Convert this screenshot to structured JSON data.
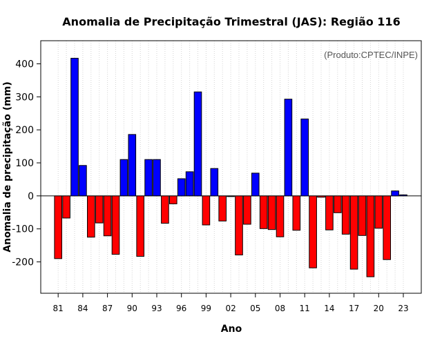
{
  "chart_data": {
    "type": "bar",
    "title": "Anomalia de Precipitação Trimestral (JAS): Região 116",
    "xlabel": "Ano",
    "ylabel": "Anomalia de precipitação (mm)",
    "credit": "(Produto:CPTEC/INPE)",
    "ylim": [
      -295,
      470
    ],
    "yticks": [
      -200,
      -100,
      0,
      100,
      200,
      300,
      400
    ],
    "xtick_labels": [
      "81",
      "84",
      "87",
      "90",
      "93",
      "96",
      "99",
      "02",
      "05",
      "08",
      "11",
      "14",
      "17",
      "20",
      "23"
    ],
    "categories": [
      "1981",
      "1982",
      "1983",
      "1984",
      "1985",
      "1986",
      "1987",
      "1988",
      "1989",
      "1990",
      "1991",
      "1992",
      "1993",
      "1994",
      "1995",
      "1996",
      "1997",
      "1998",
      "1999",
      "2000",
      "2001",
      "2002",
      "2003",
      "2004",
      "2005",
      "2006",
      "2007",
      "2008",
      "2009",
      "2010",
      "2011",
      "2012",
      "2013",
      "2014",
      "2015",
      "2016",
      "2017",
      "2018",
      "2019",
      "2020",
      "2021",
      "2022",
      "2023"
    ],
    "values": [
      -190,
      -67,
      417,
      92,
      -125,
      -82,
      -121,
      -177,
      110,
      186,
      -183,
      110,
      110,
      -83,
      -24,
      52,
      73,
      315,
      -88,
      83,
      -76,
      0,
      -179,
      -86,
      69,
      -99,
      -102,
      -124,
      293,
      -104,
      233,
      -218,
      -4,
      -103,
      -51,
      -116,
      -222,
      -120,
      -245,
      -98,
      -193,
      15,
      3
    ],
    "positive_color": "#0000ff",
    "negative_color": "#ff0000",
    "grid": "vertical-dotted"
  }
}
